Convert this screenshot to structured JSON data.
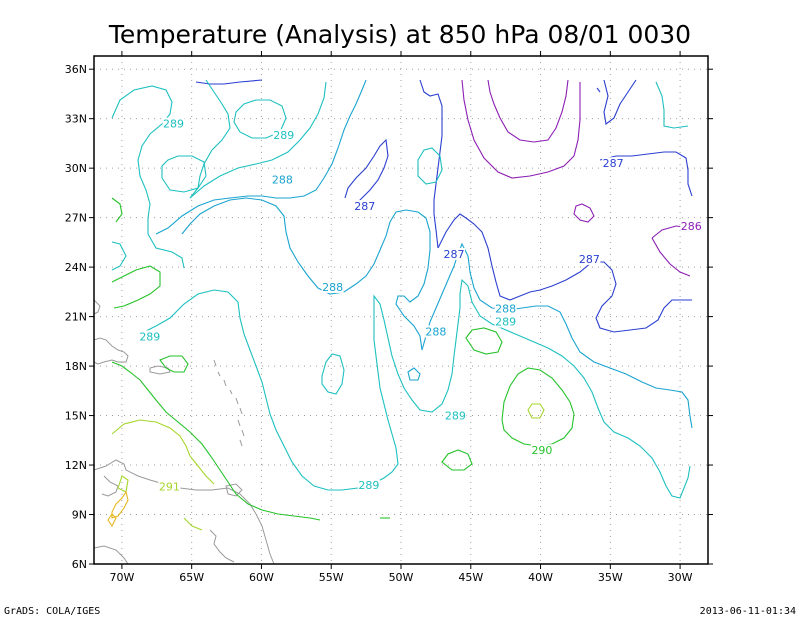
{
  "chart_data": {
    "type": "contour",
    "title": "Temperature (Analysis) at 850 hPa 08/01 0030",
    "x_axis": {
      "range": [
        -72,
        -28
      ],
      "ticks": [
        -70,
        -65,
        -60,
        -55,
        -50,
        -45,
        -40,
        -35,
        -30
      ],
      "tick_labels": [
        "70W",
        "65W",
        "60W",
        "55W",
        "50W",
        "45W",
        "40W",
        "35W",
        "30W"
      ]
    },
    "y_axis": {
      "range": [
        6,
        36.8
      ],
      "ticks": [
        6,
        9,
        12,
        15,
        18,
        21,
        24,
        27,
        30,
        33,
        36
      ],
      "tick_labels": [
        "6N",
        "9N",
        "12N",
        "15N",
        "18N",
        "21N",
        "24N",
        "27N",
        "30N",
        "33N",
        "36N"
      ]
    },
    "grid": true,
    "contour_labels": [
      {
        "text": "289",
        "lon": -66.3,
        "lat": 32.7,
        "level": 289
      },
      {
        "text": "289",
        "lon": -58.4,
        "lat": 32.0,
        "level": 289
      },
      {
        "text": "288",
        "lon": -58.5,
        "lat": 29.3,
        "level": 288
      },
      {
        "text": "287",
        "lon": -52.6,
        "lat": 27.7,
        "level": 287
      },
      {
        "text": "287",
        "lon": -46.2,
        "lat": 24.8,
        "level": 287
      },
      {
        "text": "288",
        "lon": -54.9,
        "lat": 22.8,
        "level": 288
      },
      {
        "text": "289",
        "lon": -68.0,
        "lat": 19.8,
        "level": 289
      },
      {
        "text": "288",
        "lon": -47.5,
        "lat": 20.1,
        "level": 288
      },
      {
        "text": "288",
        "lon": -42.5,
        "lat": 21.5,
        "level": 288
      },
      {
        "text": "289",
        "lon": -42.5,
        "lat": 20.7,
        "level": 289
      },
      {
        "text": "287",
        "lon": -34.8,
        "lat": 30.3,
        "level": 287
      },
      {
        "text": "287",
        "lon": -36.5,
        "lat": 24.5,
        "level": 287
      },
      {
        "text": "286",
        "lon": -29.2,
        "lat": 26.5,
        "level": 286
      },
      {
        "text": "289",
        "lon": -46.1,
        "lat": 15.0,
        "level": 289
      },
      {
        "text": "290",
        "lon": -39.9,
        "lat": 12.9,
        "level": 290
      },
      {
        "text": "289",
        "lon": -52.3,
        "lat": 10.8,
        "level": 289
      },
      {
        "text": "291",
        "lon": -66.6,
        "lat": 10.7,
        "level": 291
      }
    ],
    "level_colors": {
      "286": "#8c1eb4",
      "287": "#2a3fd0",
      "288": "#1aa4cf",
      "289": "#1ec0c0",
      "290": "#26c22a",
      "291": "#a6d62c",
      "292": "#e6b820"
    }
  },
  "footer": {
    "left": "GrADS: COLA/IGES",
    "right": "2013-06-11-01:34"
  }
}
